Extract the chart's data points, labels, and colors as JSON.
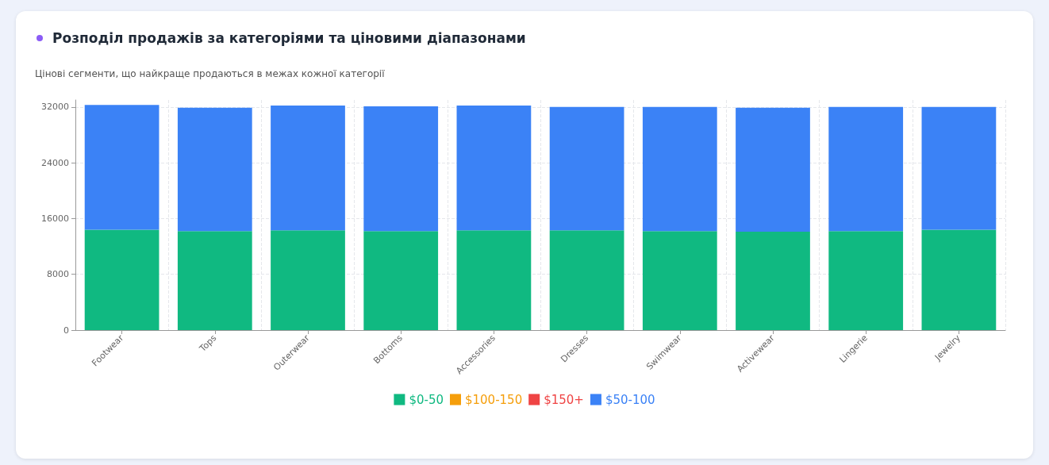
{
  "chart_data": {
    "type": "bar",
    "title": "Розподіл продажів за категоріями та ціновими діапазонами",
    "subtitle": "Цінові сегменти, що найкраще продаються в межах кожної категорії",
    "categories": [
      "Footwear",
      "Tops",
      "Outerwear",
      "Bottoms",
      "Accessories",
      "Dresses",
      "Swimwear",
      "Activewear",
      "Lingerie",
      "Jewelry"
    ],
    "stacked": true,
    "series": [
      {
        "name": "$0-50",
        "color": "#10b981",
        "values": [
          14400,
          14200,
          14300,
          14200,
          14300,
          14300,
          14200,
          14100,
          14200,
          14400
        ]
      },
      {
        "name": "$100-150",
        "color": "#f59e0b",
        "values": [
          0,
          0,
          0,
          0,
          0,
          0,
          0,
          0,
          0,
          0
        ]
      },
      {
        "name": "$150+",
        "color": "#ef4444",
        "values": [
          0,
          0,
          0,
          0,
          0,
          0,
          0,
          0,
          0,
          0
        ]
      },
      {
        "name": "$50-100",
        "color": "#3b82f6",
        "values": [
          17900,
          17700,
          17900,
          17900,
          17900,
          17700,
          17800,
          17800,
          17800,
          17600
        ]
      }
    ],
    "ylim": [
      0,
      33000
    ],
    "yticks": [
      0,
      8000,
      16000,
      24000,
      32000
    ],
    "grid": true,
    "legend": "bottom"
  }
}
